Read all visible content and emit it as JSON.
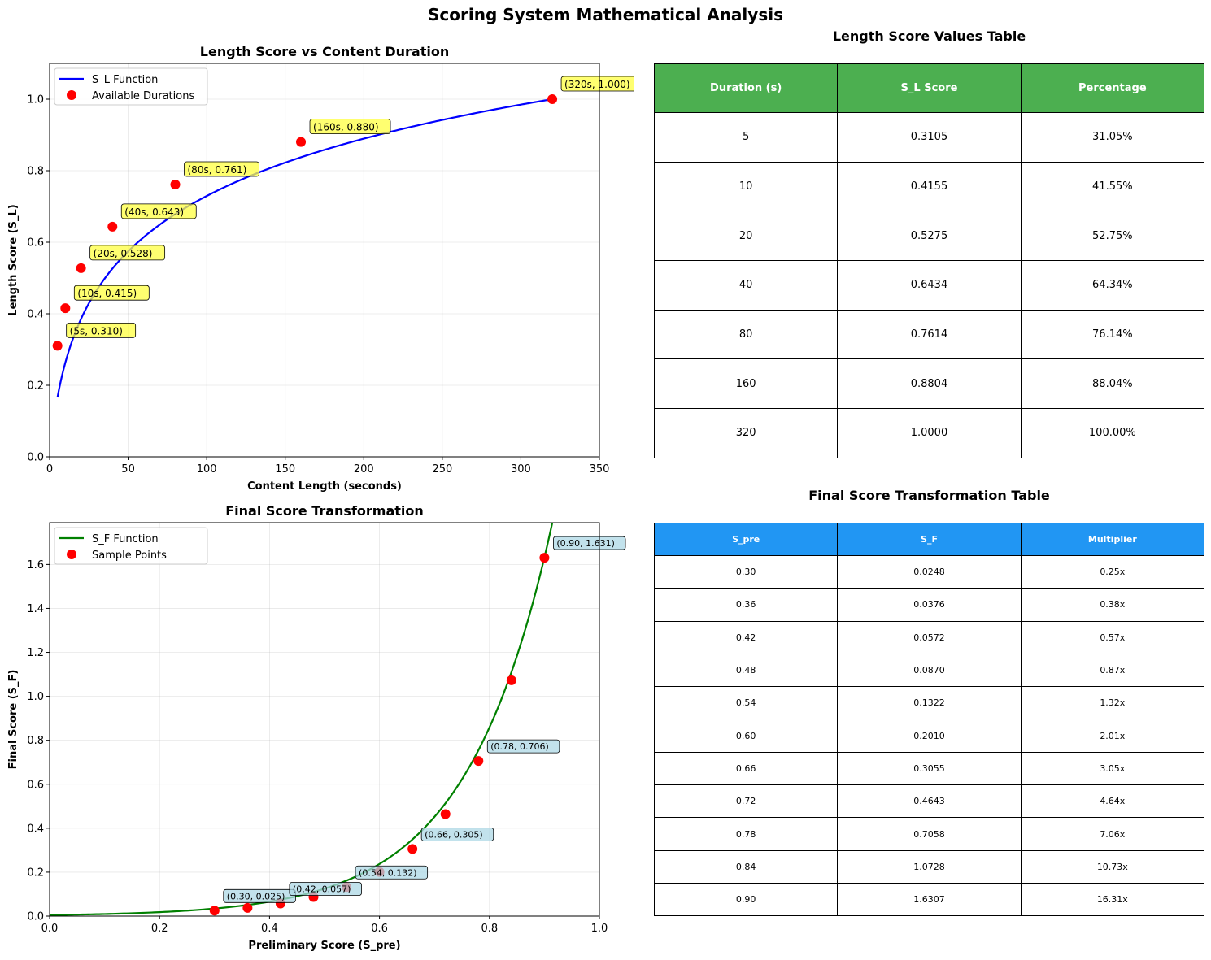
{
  "figure": {
    "title": "Scoring System Mathematical Analysis"
  },
  "colors": {
    "sl_curve": "#0000ff",
    "sf_curve": "#008000",
    "points": "#ff0000",
    "ann_yellow": "#ffff40",
    "ann_blue": "#add8e6",
    "table1_header": "#4caf50",
    "table2_header": "#2196f3"
  },
  "chart_data": [
    {
      "type": "line",
      "title": "Length Score vs Content Duration",
      "xlabel": "Content Length (seconds)",
      "ylabel": "Length Score (S_L)",
      "xlim": [
        0,
        350
      ],
      "ylim": [
        0,
        1.1
      ],
      "xticks": [
        0,
        50,
        100,
        150,
        200,
        250,
        300,
        350
      ],
      "yticks": [
        0.0,
        0.2,
        0.4,
        0.6,
        0.8,
        1.0
      ],
      "grid": true,
      "legend_position": "top-left",
      "series": [
        {
          "name": "S_L Function",
          "kind": "line",
          "color": "#0000ff"
        },
        {
          "name": "Available Durations",
          "kind": "scatter",
          "color": "#ff0000",
          "x": [
            5,
            10,
            20,
            40,
            80,
            160,
            320
          ],
          "y": [
            0.3105,
            0.4155,
            0.5275,
            0.6434,
            0.7614,
            0.8804,
            1.0
          ]
        }
      ],
      "annotations": [
        "(5s, 0.310)",
        "(10s, 0.415)",
        "(20s, 0.528)",
        "(40s, 0.643)",
        "(80s, 0.761)",
        "(160s, 0.880)",
        "(320s, 1.000)"
      ]
    },
    {
      "type": "line",
      "title": "Final Score Transformation",
      "xlabel": "Preliminary Score (S_pre)",
      "ylabel": "Final Score (S_F)",
      "xlim": [
        0,
        1.0
      ],
      "ylim": [
        0,
        1.79
      ],
      "xticks": [
        0.0,
        0.2,
        0.4,
        0.6,
        0.8,
        1.0
      ],
      "yticks": [
        0.0,
        0.2,
        0.4,
        0.6,
        0.8,
        1.0,
        1.2,
        1.4,
        1.6
      ],
      "grid": true,
      "legend_position": "top-left",
      "series": [
        {
          "name": "S_F Function",
          "kind": "line",
          "color": "#008000"
        },
        {
          "name": "Sample Points",
          "kind": "scatter",
          "color": "#ff0000",
          "x": [
            0.3,
            0.36,
            0.42,
            0.48,
            0.54,
            0.6,
            0.66,
            0.72,
            0.78,
            0.84,
            0.9
          ],
          "y": [
            0.0248,
            0.0376,
            0.0572,
            0.087,
            0.1322,
            0.201,
            0.3055,
            0.4643,
            0.7058,
            1.0728,
            1.6307
          ]
        }
      ],
      "annotations": [
        {
          "text": "(0.30, 0.025)",
          "x": 0.3,
          "y": 0.0248
        },
        {
          "text": "(0.42, 0.057)",
          "x": 0.42,
          "y": 0.0572
        },
        {
          "text": "(0.54, 0.132)",
          "x": 0.54,
          "y": 0.1322
        },
        {
          "text": "(0.66, 0.305)",
          "x": 0.66,
          "y": 0.3055
        },
        {
          "text": "(0.78, 0.706)",
          "x": 0.78,
          "y": 0.7058
        },
        {
          "text": "(0.90, 1.631)",
          "x": 0.9,
          "y": 1.6307
        }
      ]
    }
  ],
  "table1": {
    "title": "Length Score Values Table",
    "headers": [
      "Duration (s)",
      "S_L Score",
      "Percentage"
    ],
    "rows": [
      [
        "5",
        "0.3105",
        "31.05%"
      ],
      [
        "10",
        "0.4155",
        "41.55%"
      ],
      [
        "20",
        "0.5275",
        "52.75%"
      ],
      [
        "40",
        "0.6434",
        "64.34%"
      ],
      [
        "80",
        "0.7614",
        "76.14%"
      ],
      [
        "160",
        "0.8804",
        "88.04%"
      ],
      [
        "320",
        "1.0000",
        "100.00%"
      ]
    ]
  },
  "table2": {
    "title": "Final Score Transformation Table",
    "headers": [
      "S_pre",
      "S_F",
      "Multiplier"
    ],
    "rows": [
      [
        "0.30",
        "0.0248",
        "0.25x"
      ],
      [
        "0.36",
        "0.0376",
        "0.38x"
      ],
      [
        "0.42",
        "0.0572",
        "0.57x"
      ],
      [
        "0.48",
        "0.0870",
        "0.87x"
      ],
      [
        "0.54",
        "0.1322",
        "1.32x"
      ],
      [
        "0.60",
        "0.2010",
        "2.01x"
      ],
      [
        "0.66",
        "0.3055",
        "3.05x"
      ],
      [
        "0.72",
        "0.4643",
        "4.64x"
      ],
      [
        "0.78",
        "0.7058",
        "7.06x"
      ],
      [
        "0.84",
        "1.0728",
        "10.73x"
      ],
      [
        "0.90",
        "1.6307",
        "16.31x"
      ]
    ]
  }
}
